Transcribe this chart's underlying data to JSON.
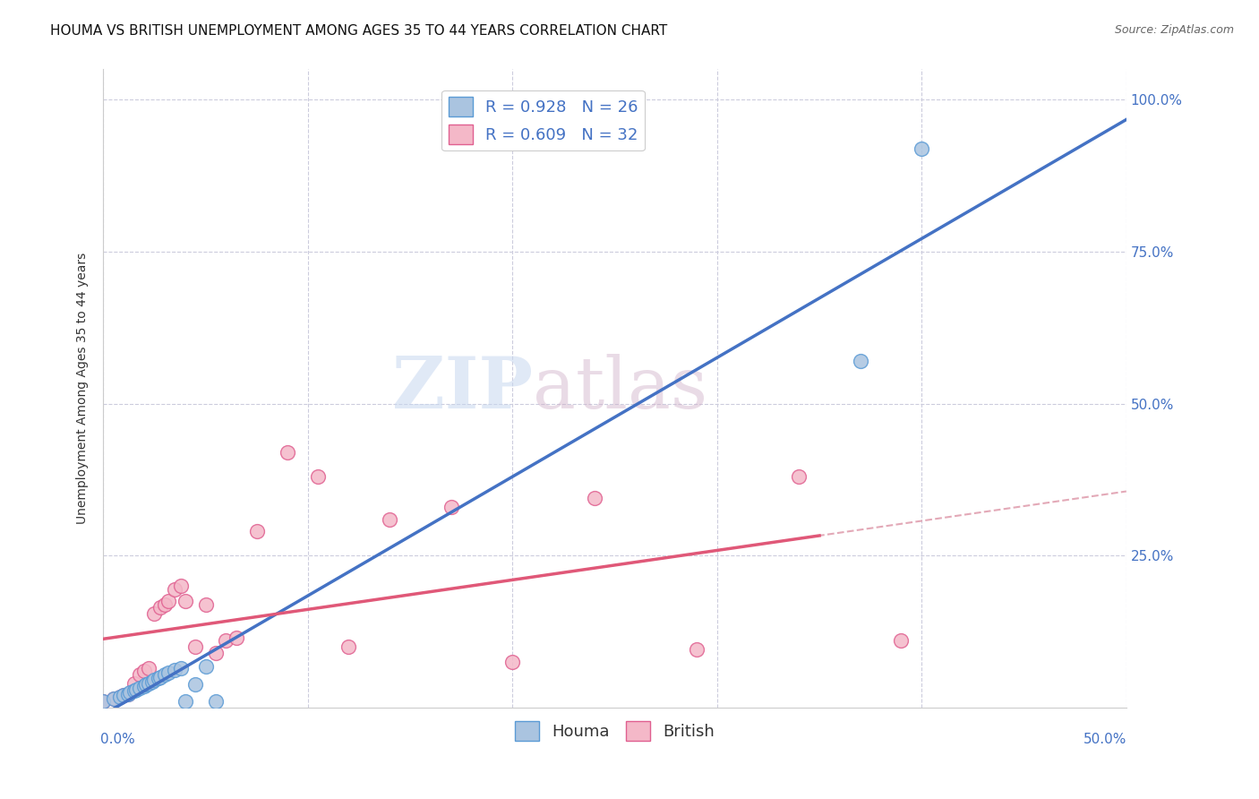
{
  "title": "HOUMA VS BRITISH UNEMPLOYMENT AMONG AGES 35 TO 44 YEARS CORRELATION CHART",
  "source": "Source: ZipAtlas.com",
  "ylabel": "Unemployment Among Ages 35 to 44 years",
  "xlim": [
    0.0,
    0.5
  ],
  "ylim": [
    0.0,
    1.05
  ],
  "xticks": [
    0.0,
    0.1,
    0.2,
    0.3,
    0.4,
    0.5
  ],
  "yticks": [
    0.25,
    0.5,
    0.75,
    1.0
  ],
  "ytick_labels": [
    "25.0%",
    "50.0%",
    "75.0%",
    "100.0%"
  ],
  "xtick_labels_show": [
    "0.0%",
    "50.0%"
  ],
  "xtick_positions_show": [
    0.0,
    0.5
  ],
  "houma_color": "#aac4e0",
  "houma_edge_color": "#5b9bd5",
  "british_color": "#f4b8c8",
  "british_edge_color": "#e06090",
  "trendline_houma_color": "#4472c4",
  "trendline_british_solid_color": "#e05878",
  "trendline_british_dashed_color": "#e0a0b0",
  "legend_label_houma": "R = 0.928   N = 26",
  "legend_label_british": "R = 0.609   N = 32",
  "legend_bottom_houma": "Houma",
  "legend_bottom_british": "British",
  "watermark_zip": "ZIP",
  "watermark_atlas": "atlas",
  "houma_x": [
    0.0,
    0.005,
    0.008,
    0.01,
    0.012,
    0.013,
    0.015,
    0.016,
    0.018,
    0.02,
    0.021,
    0.022,
    0.024,
    0.025,
    0.027,
    0.028,
    0.03,
    0.032,
    0.035,
    0.038,
    0.04,
    0.045,
    0.05,
    0.055,
    0.37,
    0.4
  ],
  "houma_y": [
    0.01,
    0.015,
    0.018,
    0.02,
    0.022,
    0.025,
    0.028,
    0.03,
    0.032,
    0.035,
    0.038,
    0.04,
    0.042,
    0.045,
    0.048,
    0.05,
    0.055,
    0.058,
    0.062,
    0.065,
    0.01,
    0.038,
    0.068,
    0.01,
    0.57,
    0.92
  ],
  "british_x": [
    0.0,
    0.005,
    0.008,
    0.01,
    0.012,
    0.015,
    0.018,
    0.02,
    0.022,
    0.025,
    0.028,
    0.03,
    0.032,
    0.035,
    0.038,
    0.04,
    0.045,
    0.05,
    0.055,
    0.06,
    0.065,
    0.075,
    0.09,
    0.105,
    0.12,
    0.14,
    0.17,
    0.2,
    0.24,
    0.29,
    0.34,
    0.39
  ],
  "british_y": [
    0.01,
    0.015,
    0.018,
    0.02,
    0.022,
    0.04,
    0.055,
    0.06,
    0.065,
    0.155,
    0.165,
    0.17,
    0.175,
    0.195,
    0.2,
    0.175,
    0.1,
    0.17,
    0.09,
    0.11,
    0.115,
    0.29,
    0.42,
    0.38,
    0.1,
    0.31,
    0.33,
    0.075,
    0.345,
    0.095,
    0.38,
    0.11
  ],
  "background_color": "#ffffff",
  "grid_color": "#ccccdd",
  "title_fontsize": 11,
  "axis_label_fontsize": 10,
  "tick_fontsize": 11,
  "marker_size": 130
}
